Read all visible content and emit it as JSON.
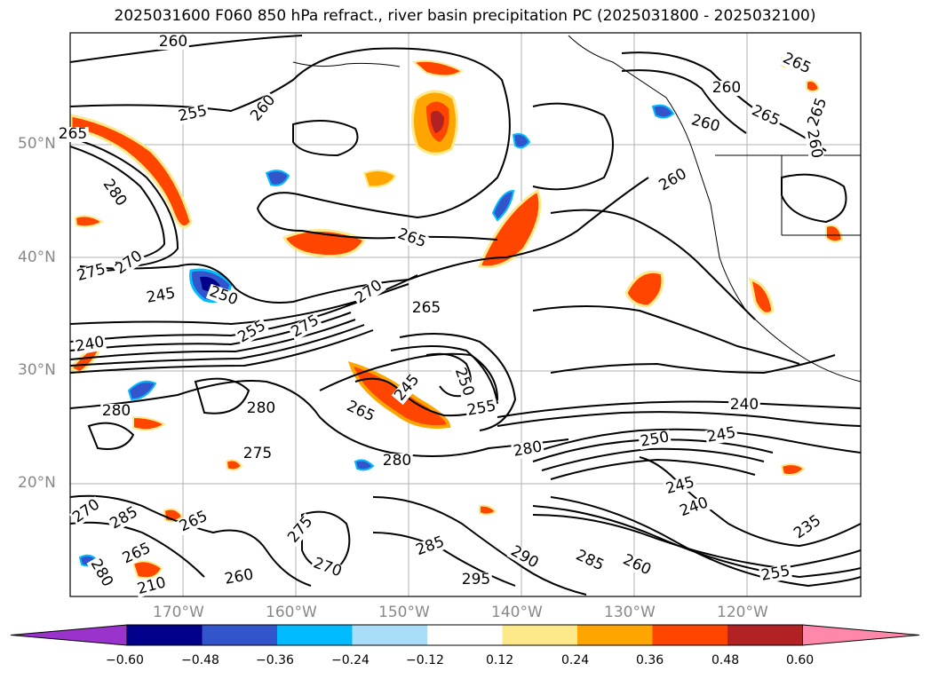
{
  "title": "2025031600 F060 850 hPa refract., river basin precipitation PC (2025031800 - 2025032100)",
  "lat_labels": [
    "50°N",
    "40°N",
    "30°N",
    "20°N"
  ],
  "lon_labels": [
    "170°W",
    "160°W",
    "150°W",
    "140°W",
    "130°W",
    "120°W"
  ],
  "colorbar": {
    "ticks": [
      "−0.60",
      "−0.48",
      "−0.36",
      "−0.24",
      "−0.12",
      "0.12",
      "0.24",
      "0.36",
      "0.48",
      "0.60"
    ],
    "colors": [
      "#9933cc",
      "#00008b",
      "#3355cc",
      "#00bbff",
      "#aaddf8",
      "#ffffff",
      "#fde98a",
      "#ffa500",
      "#ff4500",
      "#b22222",
      "#ff88aa"
    ]
  },
  "contour_labels": [
    "260",
    "255",
    "260",
    "265",
    "260",
    "265",
    "265",
    "260",
    "260",
    "260",
    "265",
    "280",
    "275",
    "270",
    "245",
    "250",
    "265",
    "240",
    "270",
    "255",
    "275",
    "265",
    "250",
    "245",
    "255",
    "280",
    "265",
    "280",
    "275",
    "280",
    "280",
    "240",
    "245",
    "250",
    "245",
    "240",
    "235",
    "285",
    "265",
    "275",
    "285",
    "290",
    "285",
    "260",
    "270",
    "265",
    "295",
    "255",
    "260",
    "210",
    "270",
    "280"
  ],
  "shading_colors": {
    "pos_light": "#fde98a",
    "pos_mid": "#ffa500",
    "pos_strong": "#ff4500",
    "pos_max": "#b22222",
    "neg_light": "#aaddf8",
    "neg_mid": "#00bbff",
    "neg_strong": "#3355cc",
    "neg_max": "#00008b"
  }
}
